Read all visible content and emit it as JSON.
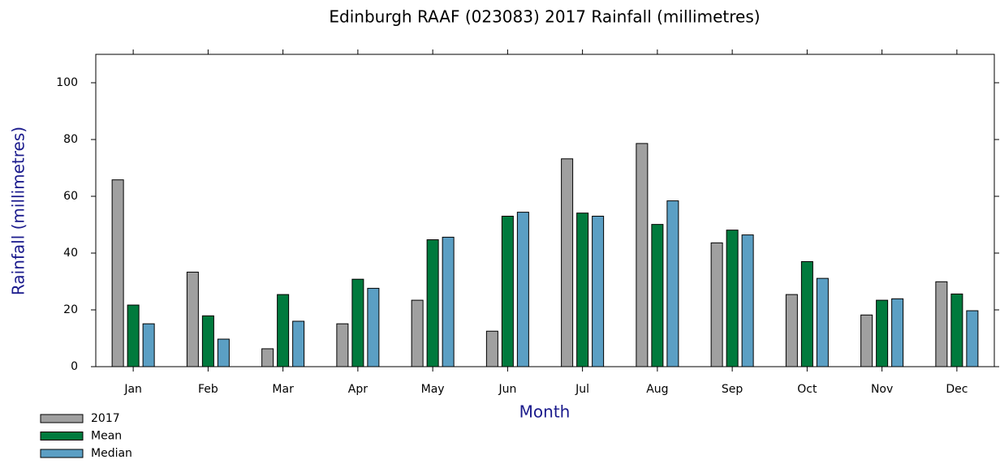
{
  "chart_data": {
    "type": "bar",
    "title": "Edinburgh RAAF (023083) 2017 Rainfall (millimetres)",
    "x_label": "Month",
    "y_label": "Rainfall (millimetres)",
    "categories": [
      "Jan",
      "Feb",
      "Mar",
      "Apr",
      "May",
      "Jun",
      "Jul",
      "Aug",
      "Sep",
      "Oct",
      "Nov",
      "Dec"
    ],
    "series": [
      {
        "name": "2017",
        "color": "#a0a0a0",
        "values": [
          65.8,
          33.3,
          6.3,
          15.1,
          23.4,
          12.5,
          73.2,
          78.6,
          43.6,
          25.4,
          18.2,
          29.9
        ]
      },
      {
        "name": "Mean",
        "color": "#007a3d",
        "values": [
          21.7,
          17.9,
          25.4,
          30.8,
          44.7,
          53.0,
          54.1,
          50.1,
          48.1,
          37.0,
          23.4,
          25.6
        ]
      },
      {
        "name": "Median",
        "color": "#5b9fc4",
        "values": [
          15.1,
          9.7,
          16.0,
          27.6,
          45.6,
          54.4,
          53.0,
          58.4,
          46.4,
          31.1,
          23.9,
          19.7
        ]
      }
    ],
    "ylim": [
      0,
      110
    ],
    "yticks": [
      0,
      20,
      40,
      60,
      80,
      100
    ],
    "legend": "bottom-left"
  }
}
